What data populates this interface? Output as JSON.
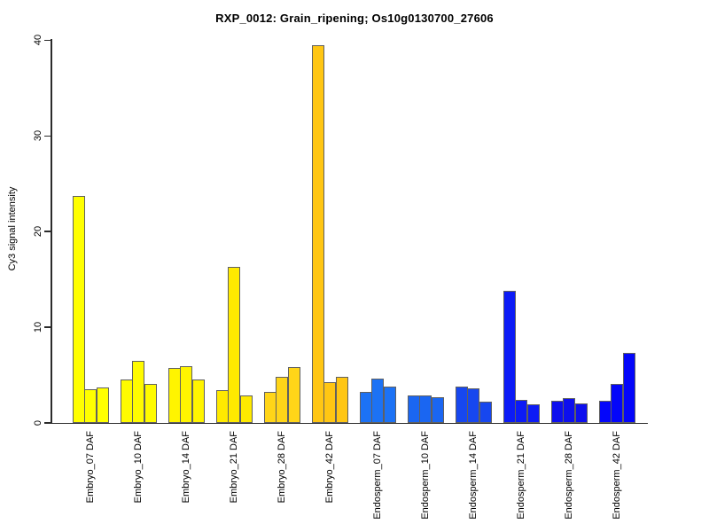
{
  "chart_data": {
    "type": "bar",
    "title": "RXP_0012: Grain_ripening; Os10g0130700_27606",
    "ylabel": "Cy3 signal intensity",
    "xlabel": "",
    "ylim": [
      0,
      40
    ],
    "yticks": [
      0,
      10,
      20,
      30,
      40
    ],
    "grid": false,
    "legend": "none",
    "bars_per_group": 3,
    "bar_border_color": "#606060",
    "axis_color": "#2b2b2b",
    "groups": [
      {
        "label": "Embryo_07 DAF",
        "color": "#FFFF00",
        "values": [
          23.7,
          3.5,
          3.7
        ]
      },
      {
        "label": "Embryo_10 DAF",
        "color": "#FFFB00",
        "values": [
          4.5,
          6.5,
          4.1
        ]
      },
      {
        "label": "Embryo_14 DAF",
        "color": "#FFF400",
        "values": [
          5.7,
          5.9,
          4.5
        ]
      },
      {
        "label": "Embryo_21 DAF",
        "color": "#FFEA00",
        "values": [
          3.4,
          16.3,
          2.9
        ]
      },
      {
        "label": "Embryo_28 DAF",
        "color": "#FFD518",
        "values": [
          3.2,
          4.8,
          5.8
        ]
      },
      {
        "label": "Embryo_42 DAF",
        "color": "#FFC613",
        "values": [
          39.5,
          4.3,
          4.8
        ]
      },
      {
        "label": "Endosperm_07 DAF",
        "color": "#1C72F5",
        "values": [
          3.2,
          4.6,
          3.8
        ]
      },
      {
        "label": "Endosperm_10 DAF",
        "color": "#1A66F2",
        "values": [
          2.9,
          2.9,
          2.7
        ]
      },
      {
        "label": "Endosperm_14 DAF",
        "color": "#1747EF",
        "values": [
          3.8,
          3.6,
          2.2
        ]
      },
      {
        "label": "Endosperm_21 DAF",
        "color": "#0C1BF6",
        "values": [
          13.8,
          2.4,
          1.9
        ]
      },
      {
        "label": "Endosperm_28 DAF",
        "color": "#0D0FEE",
        "values": [
          2.3,
          2.6,
          2.0
        ]
      },
      {
        "label": "Endosperm_42 DAF",
        "color": "#0406FA",
        "values": [
          2.3,
          4.1,
          7.3
        ]
      }
    ]
  }
}
